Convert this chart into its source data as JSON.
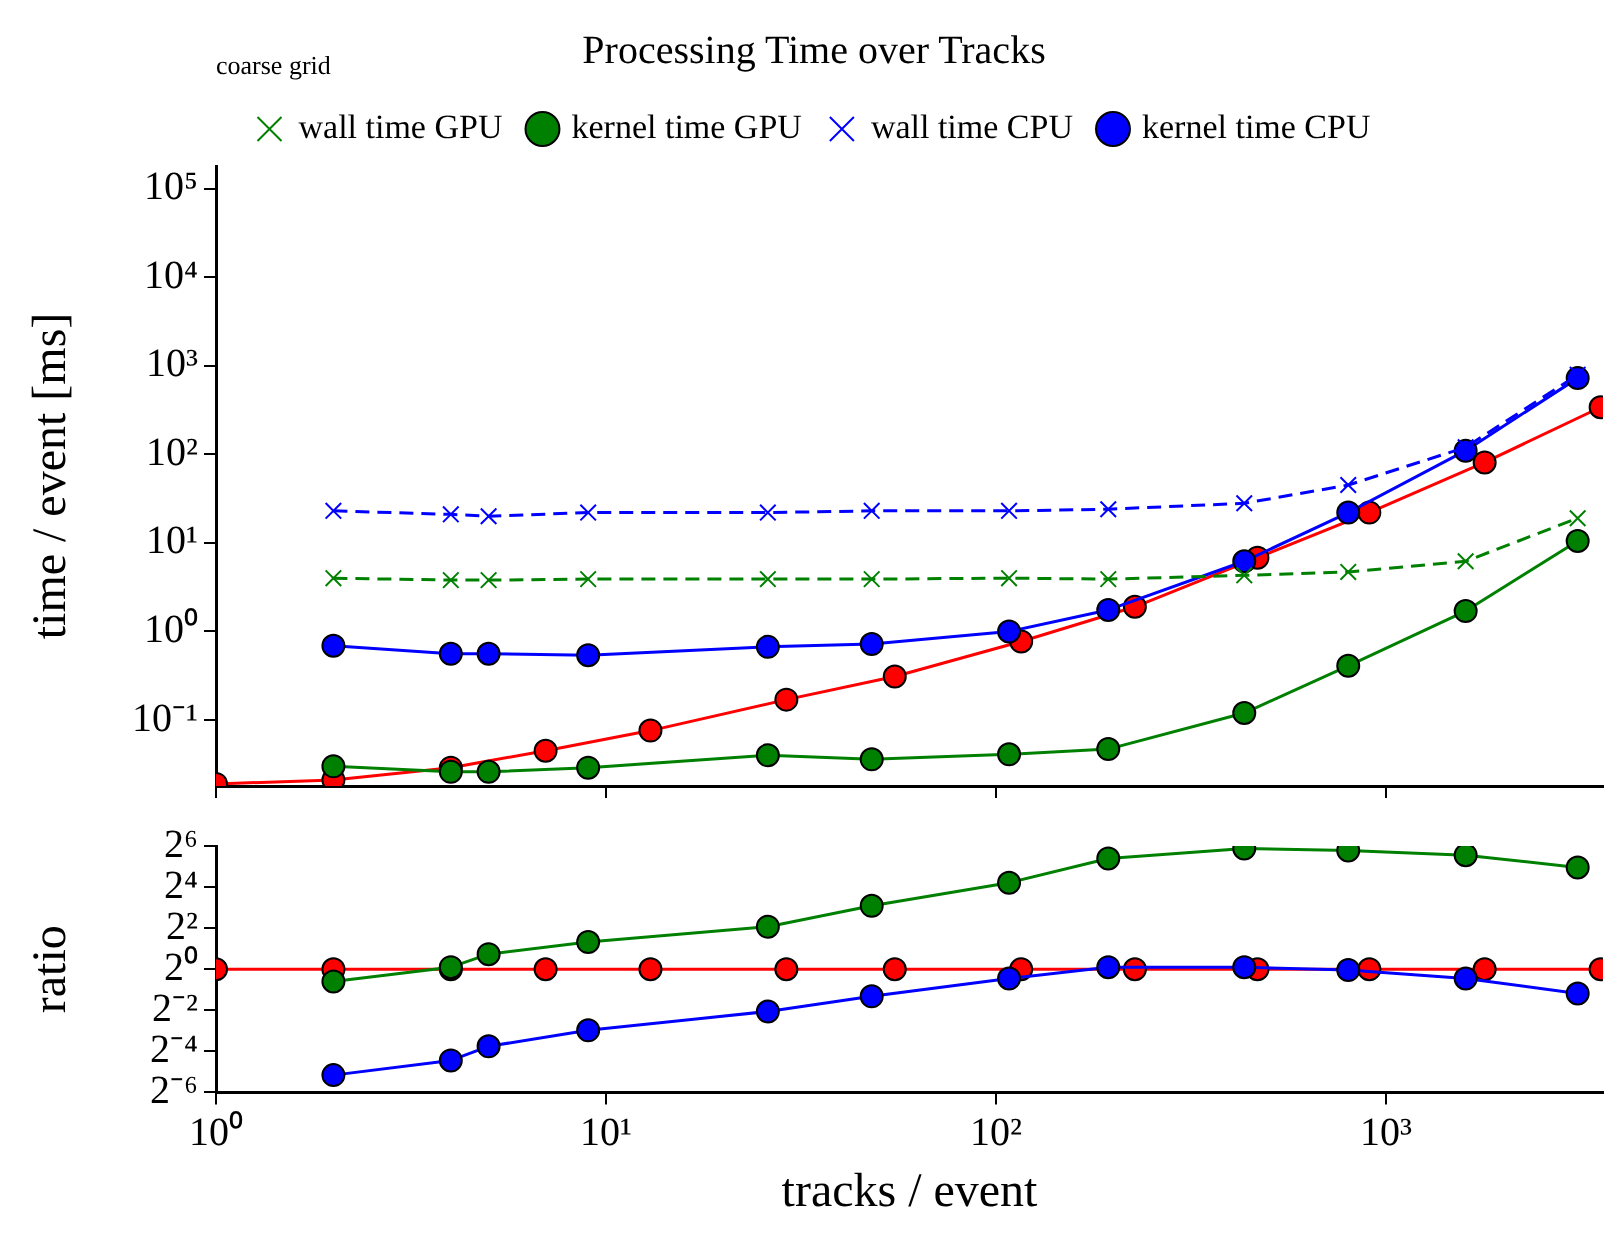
{
  "chart_data": [
    {
      "type": "line",
      "title": "Processing Time over Tracks",
      "ylabel": "time / event [ms]",
      "annotations": [
        "coarse grid"
      ],
      "log": "xy",
      "grid": false,
      "legend": "top",
      "tick_labels": "y",
      "xlim": [
        1,
        3600
      ],
      "xticks": [
        {
          "value": 1,
          "label": null
        },
        {
          "value": 10,
          "label": null
        },
        {
          "value": 100,
          "label": null
        },
        {
          "value": 1000,
          "label": null
        }
      ],
      "ylim": [
        0.018,
        180000
      ],
      "yticks": [
        {
          "value": 0.1,
          "label": "10⁻¹"
        },
        {
          "value": 1,
          "label": "10⁰"
        },
        {
          "value": 10,
          "label": "10¹"
        },
        {
          "value": 100,
          "label": "10²"
        },
        {
          "value": 1000,
          "label": "10³"
        },
        {
          "value": 10000,
          "label": "10⁴"
        },
        {
          "value": 100000,
          "label": "10⁵"
        }
      ],
      "series": [
        {
          "name": "wall time GPU",
          "color": "#008000",
          "marker": "cross",
          "line_style": "dashed",
          "x": [
            2,
            4,
            5,
            9,
            26,
            48,
            108,
            194,
            433,
            800,
            1600,
            3100
          ],
          "values": [
            4.0,
            3.8,
            3.8,
            3.9,
            3.9,
            3.9,
            4.0,
            3.9,
            4.3,
            4.7,
            6.2,
            19
          ]
        },
        {
          "name": "kernel time GPU",
          "color": "#008000",
          "marker": "circle",
          "line_style": "solid",
          "x": [
            2,
            4,
            5,
            9,
            26,
            48,
            108,
            194,
            433,
            800,
            1600,
            3100
          ],
          "values": [
            0.03,
            0.026,
            0.026,
            0.029,
            0.04,
            0.036,
            0.041,
            0.047,
            0.12,
            0.41,
            1.7,
            10.5
          ]
        },
        {
          "name": "wall time CPU",
          "color": "#0000ff",
          "marker": "cross",
          "line_style": "dashed",
          "x": [
            2,
            4,
            5,
            9,
            26,
            48,
            108,
            194,
            433,
            800,
            1600,
            3100
          ],
          "values": [
            23,
            21,
            20,
            22,
            22,
            23,
            23,
            24,
            28,
            45,
            120,
            790
          ]
        },
        {
          "name": "kernel time CPU",
          "color": "#0000ff",
          "marker": "circle",
          "line_style": "solid",
          "x": [
            2,
            4,
            5,
            9,
            26,
            48,
            108,
            194,
            433,
            800,
            1600,
            3100
          ],
          "values": [
            0.69,
            0.56,
            0.56,
            0.54,
            0.67,
            0.72,
            1.0,
            1.75,
            6.2,
            22,
            110,
            725
          ]
        },
        {
          "color": "#ff0000",
          "marker": "circle",
          "line_style": "solid",
          "x": [
            1,
            2,
            4,
            7,
            13,
            29,
            55,
            116,
            227,
            468,
            906,
            1790,
            3550
          ],
          "values": [
            0.019,
            0.021,
            0.029,
            0.045,
            0.076,
            0.17,
            0.31,
            0.77,
            1.9,
            6.8,
            22,
            81,
            340
          ]
        }
      ]
    },
    {
      "type": "line",
      "xlabel": "tracks / event",
      "ylabel": "ratio",
      "log": "xy",
      "grid": false,
      "xlim": [
        1,
        3600
      ],
      "xticks": [
        {
          "value": 1,
          "label": "10⁰"
        },
        {
          "value": 10,
          "label": "10¹"
        },
        {
          "value": 100,
          "label": "10²"
        },
        {
          "value": 1000,
          "label": "10³"
        }
      ],
      "ylim": [
        0.015625,
        64
      ],
      "yticks": [
        {
          "value": 0.015625,
          "label": "2⁻⁶"
        },
        {
          "value": 0.0625,
          "label": "2⁻⁴"
        },
        {
          "value": 0.25,
          "label": "2⁻²"
        },
        {
          "value": 1,
          "label": "2⁰"
        },
        {
          "value": 4,
          "label": "2²"
        },
        {
          "value": 16,
          "label": "2⁴"
        },
        {
          "value": 64,
          "label": "2⁶"
        }
      ],
      "series": [
        {
          "color": "#008000",
          "marker": "circle",
          "line_style": "solid",
          "x": [
            2,
            4,
            5,
            9,
            26,
            48,
            108,
            194,
            433,
            800,
            1600,
            3100
          ],
          "values": [
            0.66,
            1.07,
            1.66,
            2.5,
            4.2,
            8.5,
            18.5,
            42,
            59,
            55,
            47,
            31
          ]
        },
        {
          "color": "#0000ff",
          "marker": "circle",
          "line_style": "solid",
          "x": [
            2,
            4,
            5,
            9,
            26,
            48,
            108,
            194,
            433,
            800,
            1600,
            3100
          ],
          "values": [
            0.028,
            0.046,
            0.074,
            0.127,
            0.24,
            0.4,
            0.73,
            1.07,
            1.07,
            0.97,
            0.73,
            0.44
          ]
        },
        {
          "color": "#ff0000",
          "marker": "circle",
          "line_style": "solid",
          "x": [
            1,
            2,
            4,
            7,
            13,
            29,
            55,
            116,
            227,
            468,
            906,
            1790,
            3550
          ],
          "values": [
            1,
            1,
            1,
            1,
            1,
            1,
            1,
            1,
            1,
            1,
            1,
            1,
            1
          ]
        }
      ]
    }
  ]
}
